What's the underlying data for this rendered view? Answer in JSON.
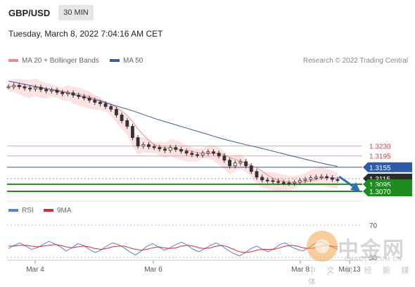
{
  "header": {
    "pair": "GBP/USD",
    "interval": "30 MIN",
    "timestamp": "Tuesday, March 8, 2022 7:04:16 AM CET"
  },
  "legend": {
    "ma20_label": "MA 20 + Bollinger Bands",
    "ma50_label": "MA 50",
    "source": "Research © 2022 Trading Central"
  },
  "rsi_legend": {
    "rsi_label": "RSI",
    "ma_label": "9MA"
  },
  "watermark": {
    "cn": "中金网",
    "en": "CNGOLD.COM.CN",
    "sub": "中 文 财 经 新 媒 体"
  },
  "colors": {
    "ma20": "#f08a8a",
    "ma50": "#3a5ba0",
    "bollinger_fill": "#fbdada",
    "resistance": "#f4a0a0",
    "pivot": "#2e5aa8",
    "support": "#1e8c1e",
    "arrow": "#2f6fb0",
    "rsi": "#5b7fd8",
    "rsi_ma": "#d32f2f",
    "candle": "#333333"
  },
  "chart_data": {
    "type": "candlestick",
    "x_ticks": [
      "Mar 4",
      "Mar 6",
      "Mar 8",
      "Mar 13"
    ],
    "price_levels": [
      {
        "value": 1.323,
        "label": "1.3230",
        "kind": "resistance"
      },
      {
        "value": 1.3195,
        "label": "1.3195",
        "kind": "resistance"
      },
      {
        "value": 1.3155,
        "label": "1.3155",
        "kind": "pivot"
      },
      {
        "value": 1.3115,
        "label": "1.3115",
        "kind": "last_price"
      },
      {
        "value": 1.3095,
        "label": "1.3095",
        "kind": "support"
      },
      {
        "value": 1.307,
        "label": "1.3070",
        "kind": "support"
      }
    ],
    "close_series": [
      1.344,
      1.3445,
      1.344,
      1.3435,
      1.3432,
      1.3438,
      1.343,
      1.3425,
      1.3428,
      1.342,
      1.3415,
      1.3418,
      1.341,
      1.3405,
      1.34,
      1.3392,
      1.3385,
      1.338,
      1.337,
      1.336,
      1.334,
      1.332,
      1.33,
      1.326,
      1.323,
      1.3235,
      1.3228,
      1.3225,
      1.322,
      1.3215,
      1.3225,
      1.3218,
      1.3212,
      1.3205,
      1.32,
      1.3198,
      1.3205,
      1.321,
      1.3205,
      1.3195,
      1.318,
      1.316,
      1.317,
      1.3175,
      1.316,
      1.314,
      1.312,
      1.311,
      1.3108,
      1.3105,
      1.3102,
      1.31,
      1.3098,
      1.3102,
      1.3108,
      1.3112,
      1.3118,
      1.312,
      1.3122,
      1.3118,
      1.3112,
      1.311
    ],
    "ma50_series": [
      1.346,
      1.3452,
      1.3444,
      1.3436,
      1.3428,
      1.342,
      1.341,
      1.34,
      1.339,
      1.3378,
      1.3366,
      1.3354,
      1.334,
      1.3326,
      1.3314,
      1.3302,
      1.329,
      1.3278,
      1.3266,
      1.3254,
      1.3244,
      1.3234,
      1.3225,
      1.3215,
      1.3205,
      1.3195,
      1.3185,
      1.3175,
      1.3166,
      1.3158
    ],
    "rsi_series": [
      41,
      45,
      48,
      44,
      40,
      42,
      46,
      50,
      47,
      43,
      38,
      42,
      47,
      45,
      40,
      36,
      39,
      44,
      48,
      46,
      42,
      37,
      33,
      38,
      44,
      47,
      43,
      39,
      42,
      46,
      49,
      45,
      40,
      37,
      41,
      45,
      48,
      44,
      39,
      35,
      32,
      36,
      41,
      44,
      40,
      37,
      41,
      46,
      48,
      43,
      40,
      38,
      42,
      47,
      50,
      46,
      43,
      40
    ],
    "rsi_ma_series": [
      44,
      44,
      45,
      45,
      44,
      43,
      44,
      45,
      46,
      45,
      43,
      42,
      43,
      44,
      43,
      41,
      40,
      41,
      43,
      44,
      44,
      42,
      40,
      39,
      40,
      42,
      43,
      42,
      41,
      42,
      44,
      45,
      44,
      42,
      41,
      42,
      44,
      45,
      43,
      40,
      37,
      36,
      37,
      39,
      40,
      40,
      40,
      42,
      44,
      45,
      44,
      42,
      41,
      42,
      44,
      45,
      44,
      43
    ],
    "rsi_levels": [
      {
        "value": 70,
        "label": "70"
      },
      {
        "value": 30,
        "label": "30"
      }
    ]
  }
}
